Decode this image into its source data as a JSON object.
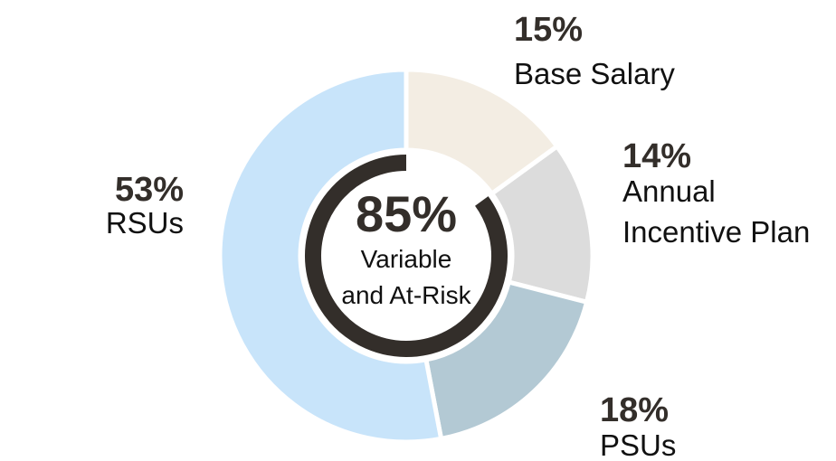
{
  "chart_data": {
    "type": "pie",
    "categories": [
      "Base Salary",
      "Annual Incentive Plan",
      "PSUs",
      "RSUs"
    ],
    "values": [
      15,
      14,
      18,
      53
    ],
    "value_labels": [
      "15%",
      "14%",
      "18%",
      "53%"
    ],
    "label_lines": [
      [
        "Base Salary"
      ],
      [
        "Annual",
        "Incentive Plan"
      ],
      [
        "PSUs"
      ],
      [
        "RSUs"
      ]
    ],
    "colors": [
      "#f3ede3",
      "#dcdcdc",
      "#b3c9d4",
      "#c8e4fa"
    ],
    "center": {
      "value": 85,
      "value_label": "85%",
      "label_lines": [
        "Variable",
        "and At-Risk"
      ],
      "ring_color": "#332e2a"
    }
  }
}
